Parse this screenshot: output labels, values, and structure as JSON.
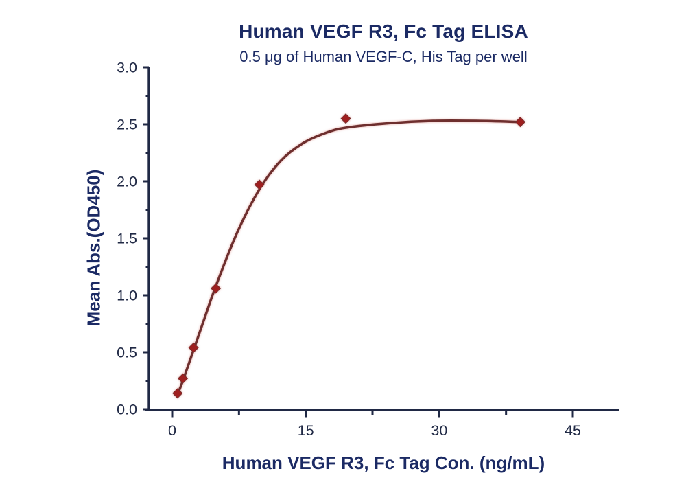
{
  "header": {
    "title": "Human VEGF R3, Fc Tag ELISA",
    "subtitle": "0.5 μg of Human VEGF-C, His Tag per well"
  },
  "axes": {
    "x_label": "Human VEGF R3, Fc Tag Con. (ng/mL)",
    "y_label": "Mean Abs.(OD450)"
  },
  "colors": {
    "title_navy": "#1b2a64",
    "axis_navy": "#202945",
    "curve_maroon": "#6e2f2e",
    "marker_red": "#9e1f1f",
    "background": "#ffffff"
  },
  "chart_data": {
    "type": "scatter",
    "title": "Human VEGF R3, Fc Tag ELISA",
    "subtitle": "0.5 μg of Human VEGF-C, His Tag per well",
    "xlabel": "Human VEGF R3, Fc Tag Con. (ng/mL)",
    "ylabel": "Mean Abs.(OD450)",
    "xlim": [
      -2.8,
      50.2
    ],
    "ylim": [
      0,
      3.0
    ],
    "grid": false,
    "legend": "none",
    "marker": "diamond",
    "x_ticks": {
      "values": [
        0,
        15,
        30,
        45
      ],
      "labels": [
        "0",
        "15",
        "30",
        "45"
      ],
      "minor": [
        7.5,
        22.5,
        37.5
      ]
    },
    "y_ticks": {
      "values": [
        0,
        0.5,
        1.0,
        1.5,
        2.0,
        2.5,
        3.0
      ],
      "labels": [
        "0.0",
        "0.5",
        "1.0",
        "1.5",
        "2.0",
        "2.5",
        "3.0"
      ],
      "minor": [
        0.25,
        0.75,
        1.25,
        1.75,
        2.25,
        2.75
      ]
    },
    "series": [
      {
        "name": "Human VEGF R3, Fc Tag",
        "x": [
          0.6,
          1.2,
          2.4,
          4.9,
          9.8,
          19.5,
          39.1
        ],
        "y": [
          0.14,
          0.27,
          0.54,
          1.06,
          1.97,
          2.55,
          2.52
        ]
      }
    ],
    "fit_curve": {
      "x": [
        0.6,
        1.2,
        2.4,
        3.6,
        4.9,
        7.3,
        9.8,
        12.2,
        14.6,
        17.1,
        19.5,
        24.4,
        29.3,
        34.2,
        39.1
      ],
      "y": [
        0.13,
        0.25,
        0.52,
        0.79,
        1.08,
        1.55,
        1.93,
        2.18,
        2.33,
        2.42,
        2.47,
        2.51,
        2.53,
        2.53,
        2.52
      ]
    }
  }
}
